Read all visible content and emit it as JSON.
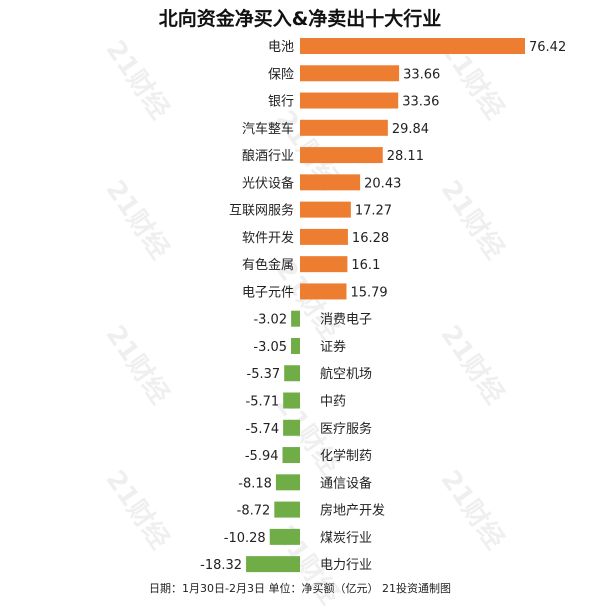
{
  "title": "北向资金净买入&净卖出十大行业",
  "footer": "日期：1月30日-2月3日 单位：净买额（亿元） 21投资通制图",
  "watermark": "21财经",
  "colors": {
    "positive": "#ED7D31",
    "negative": "#70AD47"
  },
  "chart_data": {
    "type": "bar",
    "orientation": "horizontal",
    "categories": [
      "电池",
      "保险",
      "银行",
      "汽车整车",
      "酿酒行业",
      "光伏设备",
      "互联网服务",
      "软件开发",
      "有色金属",
      "电子元件",
      "消费电子",
      "证券",
      "航空机场",
      "中药",
      "医疗服务",
      "化学制药",
      "通信设备",
      "房地产开发",
      "煤炭行业",
      "电力行业"
    ],
    "values": [
      76.42,
      33.66,
      33.36,
      29.84,
      28.11,
      20.43,
      17.27,
      16.28,
      16.1,
      15.79,
      -3.02,
      -3.05,
      -5.37,
      -5.71,
      -5.74,
      -5.94,
      -8.18,
      -8.72,
      -10.28,
      -18.32
    ],
    "value_labels": [
      "76.42",
      "33.66",
      "33.36",
      "29.84",
      "28.11",
      "20.43",
      "17.27",
      "16.28",
      "16.1",
      "15.79",
      "-3.02",
      "-3.05",
      "-5.37",
      "-5.71",
      "-5.74",
      "-5.94",
      "-8.18",
      "-8.72",
      "-10.28",
      "-18.32"
    ],
    "title": "北向资金净买入&净卖出十大行业",
    "grid": false,
    "legend": "none"
  }
}
